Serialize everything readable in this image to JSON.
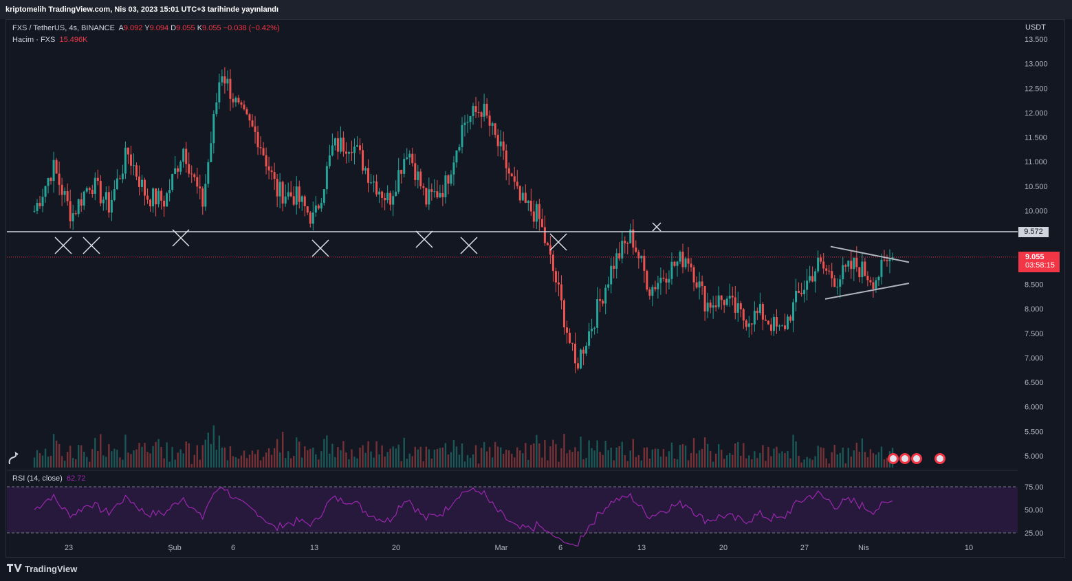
{
  "header": {
    "publish_text": "kriptomelih TradingView.com, Nis 03, 2023 15:01 UTC+3 tarihinde yayınlandı"
  },
  "legend": {
    "symbol": "FXS / TetherUS, 4s, BINANCE",
    "o_label": "A",
    "o_val": "9.092",
    "h_label": "Y",
    "h_val": "9.094",
    "l_label": "D",
    "l_val": "9.055",
    "c_label": "K",
    "c_val": "9.055",
    "change": "−0.038 (−0.42%)",
    "volume_label": "Hacim · FXS",
    "volume_val": "15.496K",
    "rsi_label": "RSI (14, close)",
    "rsi_val": "62.72"
  },
  "price_axis": {
    "currency": "USDT"
  },
  "tags": {
    "resistance": "9.572",
    "last_price": "9.055",
    "countdown": "03:58:15"
  },
  "footer": {
    "brand": "TradingView"
  },
  "colors": {
    "up": "#26a69a",
    "down": "#ef5350",
    "rsi": "#9c27b0",
    "bg": "#131722"
  },
  "chart_data": {
    "type": "line",
    "title": "",
    "price_ticks": [
      "13.500",
      "13.000",
      "12.500",
      "12.000",
      "11.500",
      "11.000",
      "10.500",
      "10.000",
      "8.500",
      "8.000",
      "7.500",
      "7.000",
      "6.500",
      "6.000",
      "5.500",
      "5.000"
    ],
    "price_tick_values": [
      13.5,
      13.0,
      12.5,
      12.0,
      11.5,
      11.0,
      10.5,
      10.0,
      8.5,
      8.0,
      7.5,
      7.0,
      6.5,
      6.0,
      5.5,
      5.0
    ],
    "rsi_ticks": [
      "75.00",
      "50.00",
      "25.00"
    ],
    "x_ticks": [
      "23",
      "Şub",
      "6",
      "13",
      "20",
      "Mar",
      "6",
      "13",
      "20",
      "27",
      "Nis",
      "10"
    ],
    "ylim": [
      4.8,
      13.7
    ],
    "resistance_level": 9.572,
    "last_price": 9.055,
    "series": [
      {
        "x": [
          "01-19",
          "01-21",
          "01-23",
          "01-25",
          "01-27",
          "01-29",
          "01-31",
          "02-02",
          "02-04",
          "02-06",
          "02-07",
          "02-08",
          "02-09",
          "02-10",
          "02-12",
          "02-14",
          "02-16",
          "02-18",
          "02-20",
          "02-22",
          "02-24",
          "02-26",
          "02-28",
          "03-01",
          "03-02",
          "03-03",
          "03-05",
          "03-07",
          "03-09",
          "03-10",
          "03-11",
          "03-12",
          "03-14",
          "03-15",
          "03-17",
          "03-18",
          "03-20",
          "03-22",
          "03-24",
          "03-26",
          "03-28",
          "03-29",
          "03-30",
          "03-31",
          "04-01",
          "04-02",
          "04-03"
        ],
        "values": [
          10.0,
          10.9,
          9.9,
          10.6,
          10.1,
          11.2,
          10.3,
          10.2,
          11.3,
          10.1,
          12.9,
          12.0,
          11.5,
          10.4,
          10.3,
          9.8,
          11.3,
          11.4,
          10.7,
          10.2,
          11.3,
          10.2,
          10.5,
          11.8,
          12.1,
          11.2,
          10.2,
          9.9,
          8.5,
          6.8,
          7.8,
          8.9,
          9.5,
          8.4,
          8.8,
          9.1,
          8.1,
          8.2,
          7.8,
          7.9,
          7.5,
          8.3,
          8.9,
          8.6,
          8.9,
          8.6,
          9.055
        ]
      }
    ],
    "annotations": [
      "X",
      "X",
      "X",
      "X",
      "X",
      "X",
      "X",
      "X"
    ]
  }
}
